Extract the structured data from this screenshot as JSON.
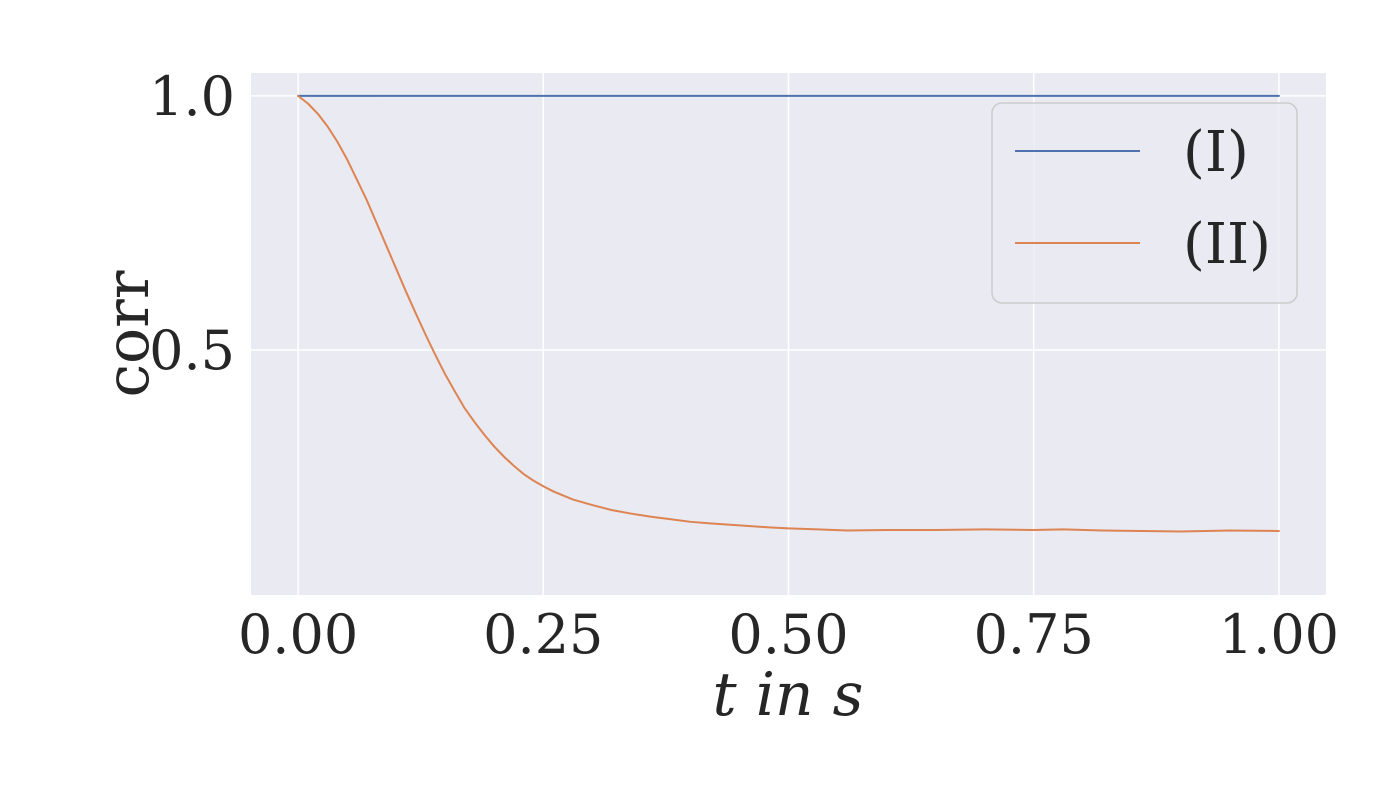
{
  "chart_data": {
    "type": "line",
    "title": "",
    "xlabel": "t in s",
    "ylabel": "corr",
    "xlim": [
      -0.048,
      1.048
    ],
    "ylim": [
      0.018,
      1.045
    ],
    "xticks": [
      0.0,
      0.25,
      0.5,
      0.75,
      1.0
    ],
    "xtick_labels": [
      "0.00",
      "0.25",
      "0.50",
      "0.75",
      "1.00"
    ],
    "yticks": [
      0.5,
      1.0
    ],
    "ytick_labels": [
      "0.5",
      "1.0"
    ],
    "grid": true,
    "legend_position": "top-right",
    "background": "#eaeaf2",
    "grid_color": "#ffffff",
    "series": [
      {
        "name": "(I)",
        "color": "#4c72b0",
        "x": [
          0.0,
          0.1,
          0.2,
          0.3,
          0.4,
          0.5,
          0.6,
          0.7,
          0.8,
          0.9,
          1.0
        ],
        "y": [
          1.0,
          1.0,
          1.0,
          1.0,
          1.0,
          1.0,
          1.0,
          1.0,
          1.0,
          1.0,
          1.0
        ]
      },
      {
        "name": "(II)",
        "color": "#dd8452",
        "x": [
          0.0,
          0.01,
          0.02,
          0.03,
          0.04,
          0.05,
          0.06,
          0.07,
          0.08,
          0.09,
          0.1,
          0.11,
          0.12,
          0.13,
          0.14,
          0.15,
          0.16,
          0.17,
          0.18,
          0.19,
          0.2,
          0.21,
          0.22,
          0.23,
          0.24,
          0.25,
          0.26,
          0.28,
          0.3,
          0.32,
          0.34,
          0.36,
          0.38,
          0.4,
          0.42,
          0.45,
          0.48,
          0.5,
          0.53,
          0.56,
          0.6,
          0.65,
          0.7,
          0.75,
          0.78,
          0.82,
          0.86,
          0.9,
          0.95,
          1.0
        ],
        "y": [
          1.0,
          0.985,
          0.965,
          0.94,
          0.91,
          0.875,
          0.835,
          0.795,
          0.75,
          0.705,
          0.66,
          0.615,
          0.572,
          0.53,
          0.49,
          0.452,
          0.418,
          0.385,
          0.358,
          0.333,
          0.31,
          0.29,
          0.272,
          0.256,
          0.243,
          0.232,
          0.222,
          0.206,
          0.195,
          0.185,
          0.178,
          0.172,
          0.167,
          0.162,
          0.159,
          0.155,
          0.151,
          0.149,
          0.147,
          0.145,
          0.146,
          0.146,
          0.147,
          0.146,
          0.147,
          0.145,
          0.144,
          0.143,
          0.145,
          0.144
        ]
      }
    ]
  }
}
